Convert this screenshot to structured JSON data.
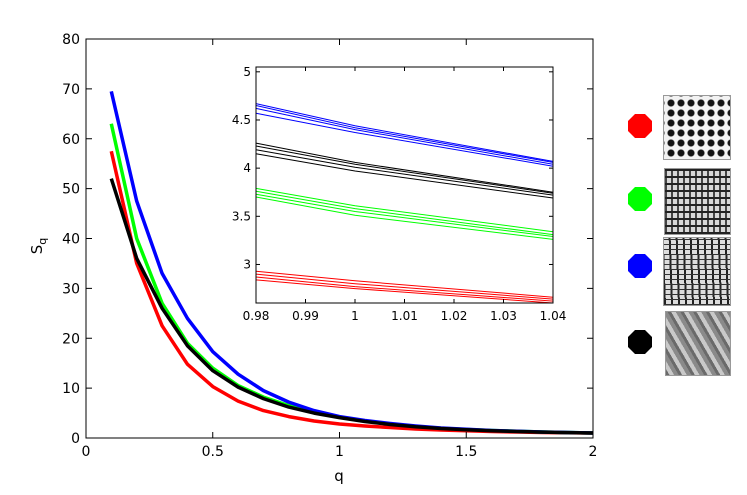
{
  "chart_data": [
    {
      "type": "line",
      "title": "",
      "xlabel": "q",
      "ylabel": "S_q",
      "xlim": [
        0,
        2
      ],
      "ylim": [
        0,
        80
      ],
      "xticks": [
        0,
        0.5,
        1,
        1.5,
        2
      ],
      "xtick_labels": [
        "0",
        "0.5",
        "1",
        "1.5",
        "2"
      ],
      "yticks": [
        0,
        10,
        20,
        30,
        40,
        50,
        60,
        70,
        80
      ],
      "ytick_labels": [
        "0",
        "10",
        "20",
        "30",
        "40",
        "50",
        "60",
        "70",
        "80"
      ],
      "grid": false,
      "x": [
        0.1,
        0.2,
        0.3,
        0.4,
        0.5,
        0.6,
        0.7,
        0.8,
        0.9,
        1.0,
        1.1,
        1.2,
        1.3,
        1.4,
        1.5,
        1.6,
        1.7,
        1.8,
        1.9,
        2.0
      ],
      "series": [
        {
          "color": "#ff0000",
          "values": [
            57.5,
            35,
            22.5,
            14.8,
            10.3,
            7.4,
            5.5,
            4.3,
            3.4,
            2.8,
            2.4,
            2.1,
            1.8,
            1.6,
            1.45,
            1.3,
            1.2,
            1.1,
            1.05,
            1.0
          ]
        },
        {
          "color": "#00ff00",
          "values": [
            63,
            40,
            27,
            19,
            14,
            10.5,
            8.2,
            6.5,
            5.2,
            4.2,
            3.4,
            2.8,
            2.3,
            1.95,
            1.7,
            1.5,
            1.35,
            1.2,
            1.1,
            1.0
          ]
        },
        {
          "color": "#0000ff",
          "values": [
            69.5,
            47.5,
            33,
            24,
            17.3,
            12.8,
            9.5,
            7.2,
            5.5,
            4.3,
            3.5,
            2.9,
            2.4,
            2.0,
            1.75,
            1.5,
            1.35,
            1.2,
            1.1,
            1.0
          ]
        },
        {
          "color": "#000000",
          "values": [
            52,
            36,
            26,
            18.5,
            13.5,
            10.2,
            7.9,
            6.2,
            5.0,
            4.1,
            3.3,
            2.7,
            2.25,
            1.9,
            1.65,
            1.45,
            1.3,
            1.18,
            1.08,
            1.0
          ]
        }
      ],
      "inset": {
        "xlim": [
          0.98,
          1.04
        ],
        "ylim": [
          2.6,
          5.05
        ],
        "xticks": [
          0.98,
          0.99,
          1.0,
          1.01,
          1.02,
          1.03,
          1.04
        ],
        "xtick_labels": [
          "0.98",
          "0.99",
          "1",
          "1.01",
          "1.02",
          "1.03",
          "1.04"
        ],
        "yticks": [
          3,
          3.5,
          4,
          4.5,
          5
        ],
        "ytick_labels": [
          "3",
          "3.5",
          "4",
          "4.5",
          "5"
        ],
        "x": [
          0.98,
          1.0,
          1.04
        ],
        "series": [
          {
            "color": "#ff0000",
            "values": [
              2.93,
              2.83,
              2.66
            ]
          },
          {
            "color": "#ff0000",
            "values": [
              2.9,
              2.8,
              2.64
            ]
          },
          {
            "color": "#ff0000",
            "values": [
              2.87,
              2.77,
              2.62
            ]
          },
          {
            "color": "#ff0000",
            "values": [
              2.84,
              2.75,
              2.6
            ]
          },
          {
            "color": "#00ff00",
            "values": [
              3.79,
              3.61,
              3.34
            ]
          },
          {
            "color": "#00ff00",
            "values": [
              3.76,
              3.58,
              3.31
            ]
          },
          {
            "color": "#00ff00",
            "values": [
              3.73,
              3.55,
              3.29
            ]
          },
          {
            "color": "#00ff00",
            "values": [
              3.7,
              3.51,
              3.26
            ]
          },
          {
            "color": "#0000ff",
            "values": [
              4.67,
              4.44,
              4.07
            ]
          },
          {
            "color": "#0000ff",
            "values": [
              4.65,
              4.42,
              4.06
            ]
          },
          {
            "color": "#0000ff",
            "values": [
              4.62,
              4.4,
              4.04
            ]
          },
          {
            "color": "#0000ff",
            "values": [
              4.57,
              4.37,
              4.02
            ]
          },
          {
            "color": "#000000",
            "values": [
              4.26,
              4.06,
              3.75
            ]
          },
          {
            "color": "#000000",
            "values": [
              4.23,
              4.04,
              3.74
            ]
          },
          {
            "color": "#000000",
            "values": [
              4.19,
              4.01,
              3.72
            ]
          },
          {
            "color": "#000000",
            "values": [
              4.15,
              3.97,
              3.69
            ]
          }
        ]
      }
    }
  ],
  "legend": {
    "items": [
      {
        "color": "#ff0000",
        "texture": "dot-grid-texture"
      },
      {
        "color": "#00ff00",
        "texture": "woven-mesh-texture"
      },
      {
        "color": "#0000ff",
        "texture": "wavy-mesh-texture"
      },
      {
        "color": "#000000",
        "texture": "swirl-texture"
      }
    ]
  }
}
